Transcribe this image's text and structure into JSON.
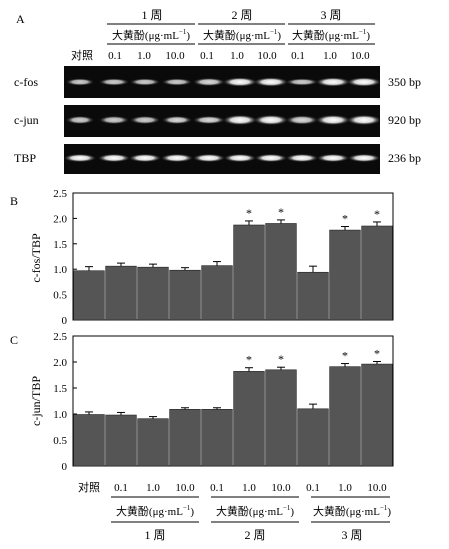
{
  "panels": {
    "a": "A",
    "b": "B",
    "c": "C"
  },
  "top_header": {
    "weeks": [
      "1 周",
      "2 周",
      "3 周"
    ],
    "dose_label_main": "大黄酚(μg·mL",
    "dose_label_sup": "−1",
    "dose_label_close": ")",
    "control": "对照",
    "doses": [
      "0.1",
      "1.0",
      "10.0",
      "0.1",
      "1.0",
      "10.0",
      "0.1",
      "1.0",
      "10.0"
    ]
  },
  "gel_rows": [
    {
      "label": "c-fos",
      "size": "350 bp"
    },
    {
      "label": "c-jun",
      "size": "920 bp"
    },
    {
      "label": "TBP",
      "size": "236 bp"
    }
  ],
  "bottom_header": {
    "control": "对照",
    "doses": [
      "0.1",
      "1.0",
      "10.0",
      "0.1",
      "1.0",
      "10.0",
      "0.1",
      "1.0",
      "10.0"
    ],
    "dose_label_main": "大黄酚(μg·mL",
    "dose_label_sup": "−1",
    "dose_label_close": ")",
    "weeks": [
      "1 周",
      "2 周",
      "3 周"
    ]
  },
  "significance_mark": "*",
  "colors": {
    "bar": "#555555",
    "gel_bg": "#0a0a0a"
  },
  "chart_data": [
    {
      "type": "bar",
      "panel": "B",
      "ylabel": "c-fos/TBP",
      "ylim": [
        0,
        2.5
      ],
      "yticks": [
        "0",
        "0.5",
        "1.0",
        "1.5",
        "2.0",
        "2.5"
      ],
      "categories": [
        "对照",
        "0.1",
        "1.0",
        "10.0",
        "0.1",
        "1.0",
        "10.0",
        "0.1",
        "1.0",
        "10.0"
      ],
      "values": [
        0.97,
        1.06,
        1.04,
        0.98,
        1.07,
        1.87,
        1.9,
        0.94,
        1.77,
        1.85
      ],
      "errors": [
        0.08,
        0.06,
        0.06,
        0.05,
        0.08,
        0.08,
        0.07,
        0.12,
        0.07,
        0.08
      ],
      "significant": [
        false,
        false,
        false,
        false,
        false,
        true,
        true,
        false,
        true,
        true
      ]
    },
    {
      "type": "bar",
      "panel": "C",
      "ylabel": "c-jun/TBP",
      "ylim": [
        0,
        2.5
      ],
      "yticks": [
        "0",
        "0.5",
        "1.0",
        "1.5",
        "2.0",
        "2.5"
      ],
      "categories": [
        "对照",
        "0.1",
        "1.0",
        "10.0",
        "0.1",
        "1.0",
        "10.0",
        "0.1",
        "1.0",
        "10.0"
      ],
      "values": [
        0.99,
        0.98,
        0.91,
        1.09,
        1.09,
        1.82,
        1.85,
        1.1,
        1.91,
        1.96
      ],
      "errors": [
        0.05,
        0.05,
        0.04,
        0.03,
        0.03,
        0.07,
        0.05,
        0.09,
        0.06,
        0.05
      ],
      "significant": [
        false,
        false,
        false,
        false,
        false,
        true,
        true,
        false,
        true,
        true
      ]
    }
  ]
}
